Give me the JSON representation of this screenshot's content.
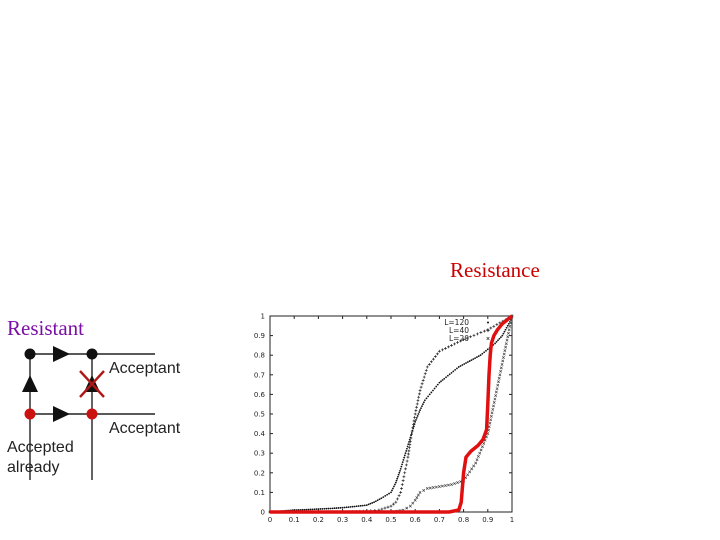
{
  "labels": {
    "resistance_title": "Resistance",
    "resistant": "Resistant",
    "acceptant_1": "Acceptant",
    "acceptant_2": "Acceptant",
    "accepted_line1": "Accepted",
    "accepted_line2": "already"
  },
  "colors": {
    "resistance_title": "#cc0000",
    "resistant": "#7a0fa3",
    "node_black": "#111111",
    "node_red": "#cc1111",
    "curve_red": "#e01010"
  },
  "chart_data": {
    "type": "line",
    "xlim": [
      0,
      1
    ],
    "ylim": [
      0,
      1
    ],
    "x_ticks": [
      "0",
      "0.1",
      "0.2",
      "0.3",
      "0.4",
      "0.5",
      "0.6",
      "0.7",
      "0.8",
      "0.9",
      "1"
    ],
    "y_ticks": [
      "0",
      "0.1",
      "0.2",
      "0.3",
      "0.4",
      "0.5",
      "0.6",
      "0.7",
      "0.8",
      "0.9",
      "1"
    ],
    "legend": [
      "L=120",
      "L=40",
      "L=20"
    ],
    "legend_position": "top-right",
    "series": [
      {
        "name": "L=120",
        "marker": "dot",
        "points": [
          [
            0.0,
            0.0
          ],
          [
            0.05,
            0.005
          ],
          [
            0.1,
            0.01
          ],
          [
            0.15,
            0.012
          ],
          [
            0.2,
            0.015
          ],
          [
            0.25,
            0.018
          ],
          [
            0.3,
            0.022
          ],
          [
            0.35,
            0.028
          ],
          [
            0.4,
            0.035
          ],
          [
            0.43,
            0.05
          ],
          [
            0.46,
            0.07
          ],
          [
            0.5,
            0.1
          ],
          [
            0.52,
            0.15
          ],
          [
            0.54,
            0.22
          ],
          [
            0.56,
            0.3
          ],
          [
            0.58,
            0.38
          ],
          [
            0.6,
            0.46
          ],
          [
            0.62,
            0.52
          ],
          [
            0.64,
            0.57
          ],
          [
            0.66,
            0.6
          ],
          [
            0.68,
            0.63
          ],
          [
            0.7,
            0.66
          ],
          [
            0.72,
            0.68
          ],
          [
            0.75,
            0.71
          ],
          [
            0.78,
            0.74
          ],
          [
            0.81,
            0.76
          ],
          [
            0.84,
            0.78
          ],
          [
            0.87,
            0.8
          ],
          [
            0.9,
            0.83
          ],
          [
            0.93,
            0.86
          ],
          [
            0.96,
            0.9
          ],
          [
            1.0,
            0.99
          ]
        ]
      },
      {
        "name": "L=40",
        "marker": "plus",
        "points": [
          [
            0.0,
            0.0
          ],
          [
            0.1,
            0.0
          ],
          [
            0.2,
            0.0
          ],
          [
            0.3,
            0.0
          ],
          [
            0.4,
            0.005
          ],
          [
            0.45,
            0.01
          ],
          [
            0.5,
            0.03
          ],
          [
            0.52,
            0.05
          ],
          [
            0.54,
            0.1
          ],
          [
            0.55,
            0.16
          ],
          [
            0.56,
            0.22
          ],
          [
            0.57,
            0.28
          ],
          [
            0.58,
            0.36
          ],
          [
            0.6,
            0.5
          ],
          [
            0.62,
            0.62
          ],
          [
            0.65,
            0.74
          ],
          [
            0.7,
            0.82
          ],
          [
            0.8,
            0.88
          ],
          [
            0.9,
            0.93
          ],
          [
            1.0,
            1.0
          ]
        ]
      },
      {
        "name": "L=20",
        "marker": "cross",
        "points": [
          [
            0.0,
            0.0
          ],
          [
            0.2,
            0.0
          ],
          [
            0.4,
            0.0
          ],
          [
            0.5,
            0.0
          ],
          [
            0.55,
            0.01
          ],
          [
            0.58,
            0.03
          ],
          [
            0.6,
            0.06
          ],
          [
            0.62,
            0.1
          ],
          [
            0.65,
            0.12
          ],
          [
            0.7,
            0.13
          ],
          [
            0.75,
            0.14
          ],
          [
            0.8,
            0.16
          ],
          [
            0.85,
            0.25
          ],
          [
            0.9,
            0.4
          ],
          [
            0.95,
            0.7
          ],
          [
            1.0,
            1.0
          ]
        ]
      },
      {
        "name": "",
        "marker": "thick-line",
        "points": [
          [
            0.0,
            0.0
          ],
          [
            0.5,
            0.0
          ],
          [
            0.74,
            0.0
          ],
          [
            0.78,
            0.01
          ],
          [
            0.79,
            0.05
          ],
          [
            0.8,
            0.2
          ],
          [
            0.81,
            0.28
          ],
          [
            0.83,
            0.31
          ],
          [
            0.86,
            0.34
          ],
          [
            0.88,
            0.37
          ],
          [
            0.895,
            0.42
          ],
          [
            0.9,
            0.55
          ],
          [
            0.905,
            0.7
          ],
          [
            0.91,
            0.8
          ],
          [
            0.915,
            0.86
          ],
          [
            0.925,
            0.9
          ],
          [
            0.94,
            0.93
          ],
          [
            0.96,
            0.96
          ],
          [
            0.98,
            0.98
          ],
          [
            1.0,
            1.0
          ]
        ]
      }
    ]
  }
}
